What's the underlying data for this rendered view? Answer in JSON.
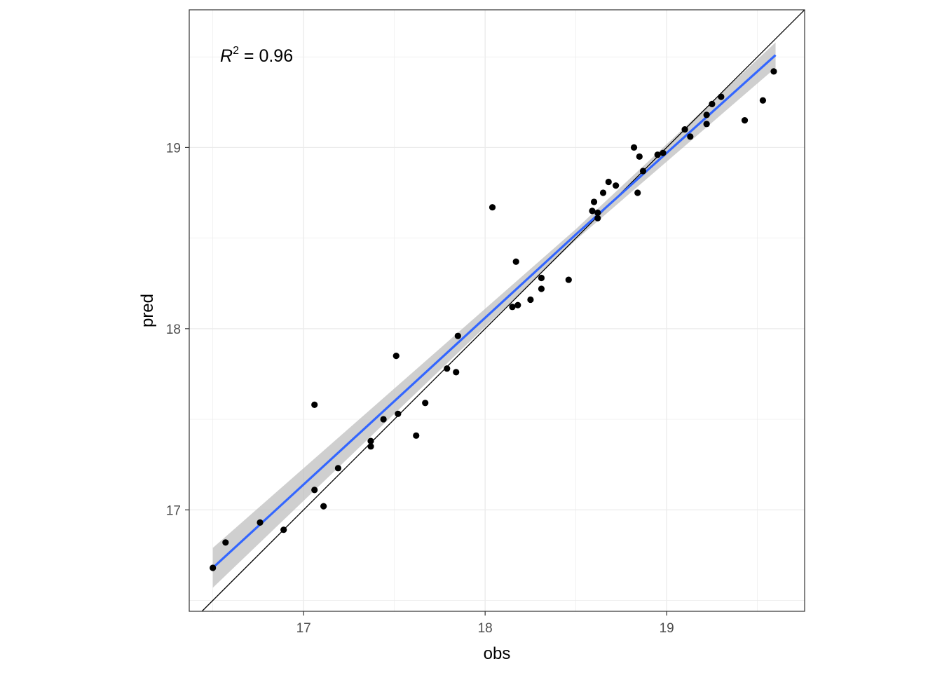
{
  "chart_data": {
    "type": "scatter",
    "xlabel": "obs",
    "ylabel": "pred",
    "xlim": [
      16.37,
      19.76
    ],
    "ylim": [
      16.44,
      19.76
    ],
    "x_ticks": [
      17,
      18,
      19
    ],
    "y_ticks": [
      17,
      18,
      19
    ],
    "x_tick_labels": [
      "17",
      "18",
      "19"
    ],
    "y_tick_labels": [
      "17",
      "18",
      "19"
    ],
    "grid": true,
    "annotation": {
      "base": "R",
      "superscript": "2",
      "rest": " = 0.96"
    },
    "reference_line": {
      "slope": 1,
      "intercept": 0,
      "color": "#000000"
    },
    "fit_line": {
      "color": "#3366ff",
      "band_color": "#bfbfbf",
      "x": [
        16.5,
        18.5,
        19.6
      ],
      "y": [
        16.68,
        18.52,
        19.51
      ],
      "band_half_width": [
        0.11,
        0.03,
        0.07
      ]
    },
    "points_color": "#000000",
    "points": [
      {
        "x": 16.5,
        "y": 16.68
      },
      {
        "x": 16.57,
        "y": 16.82
      },
      {
        "x": 16.76,
        "y": 16.93
      },
      {
        "x": 16.89,
        "y": 16.89
      },
      {
        "x": 17.06,
        "y": 17.58
      },
      {
        "x": 17.06,
        "y": 17.11
      },
      {
        "x": 17.11,
        "y": 17.02
      },
      {
        "x": 17.19,
        "y": 17.23
      },
      {
        "x": 17.37,
        "y": 17.38
      },
      {
        "x": 17.37,
        "y": 17.35
      },
      {
        "x": 17.44,
        "y": 17.5
      },
      {
        "x": 17.51,
        "y": 17.85
      },
      {
        "x": 17.52,
        "y": 17.53
      },
      {
        "x": 17.62,
        "y": 17.41
      },
      {
        "x": 17.67,
        "y": 17.59
      },
      {
        "x": 17.79,
        "y": 17.78
      },
      {
        "x": 17.84,
        "y": 17.76
      },
      {
        "x": 17.85,
        "y": 17.96
      },
      {
        "x": 18.04,
        "y": 18.67
      },
      {
        "x": 18.15,
        "y": 18.12
      },
      {
        "x": 18.17,
        "y": 18.37
      },
      {
        "x": 18.18,
        "y": 18.13
      },
      {
        "x": 18.25,
        "y": 18.16
      },
      {
        "x": 18.31,
        "y": 18.28
      },
      {
        "x": 18.31,
        "y": 18.22
      },
      {
        "x": 18.46,
        "y": 18.27
      },
      {
        "x": 18.59,
        "y": 18.65
      },
      {
        "x": 18.6,
        "y": 18.7
      },
      {
        "x": 18.62,
        "y": 18.61
      },
      {
        "x": 18.62,
        "y": 18.64
      },
      {
        "x": 18.65,
        "y": 18.75
      },
      {
        "x": 18.68,
        "y": 18.81
      },
      {
        "x": 18.72,
        "y": 18.79
      },
      {
        "x": 18.82,
        "y": 19.0
      },
      {
        "x": 18.84,
        "y": 18.75
      },
      {
        "x": 18.85,
        "y": 18.95
      },
      {
        "x": 18.87,
        "y": 18.87
      },
      {
        "x": 18.95,
        "y": 18.96
      },
      {
        "x": 18.98,
        "y": 18.97
      },
      {
        "x": 19.1,
        "y": 19.1
      },
      {
        "x": 19.13,
        "y": 19.06
      },
      {
        "x": 19.22,
        "y": 19.13
      },
      {
        "x": 19.22,
        "y": 19.18
      },
      {
        "x": 19.25,
        "y": 19.24
      },
      {
        "x": 19.3,
        "y": 19.28
      },
      {
        "x": 19.43,
        "y": 19.15
      },
      {
        "x": 19.53,
        "y": 19.26
      },
      {
        "x": 19.59,
        "y": 19.42
      }
    ]
  }
}
